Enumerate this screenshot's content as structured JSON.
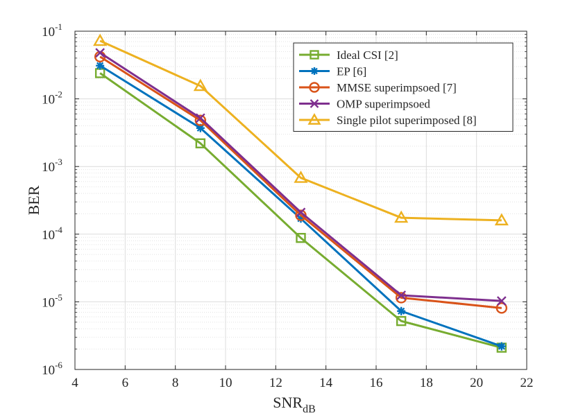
{
  "chart_data": {
    "type": "line",
    "title": "",
    "xlabel": "SNR",
    "xlabel_sub": "dB",
    "ylabel": "BER",
    "yscale": "log",
    "xlim": [
      4,
      22
    ],
    "ylim": [
      1e-06,
      0.1
    ],
    "grid": true,
    "legend_position": "top-right",
    "x_ticks": [
      4,
      6,
      8,
      10,
      12,
      14,
      16,
      18,
      20,
      22
    ],
    "y_ticks": [
      {
        "value": 1e-06,
        "base": "10",
        "exp": "-6"
      },
      {
        "value": 1e-05,
        "base": "10",
        "exp": "-5"
      },
      {
        "value": 0.0001,
        "base": "10",
        "exp": "-4"
      },
      {
        "value": 0.001,
        "base": "10",
        "exp": "-3"
      },
      {
        "value": 0.01,
        "base": "10",
        "exp": "-2"
      },
      {
        "value": 0.1,
        "base": "10",
        "exp": "-1"
      }
    ],
    "x": [
      5,
      9,
      13,
      17,
      21
    ],
    "series": [
      {
        "name": "Ideal CSI [2]",
        "color": "#77AC30",
        "marker": "square",
        "values": [
          0.024,
          0.0022,
          8.8e-05,
          5.2e-06,
          2.1e-06
        ]
      },
      {
        "name": "EP [6]",
        "color": "#0072BD",
        "marker": "asterisk",
        "values": [
          0.031,
          0.0037,
          0.00017,
          7.3e-06,
          2.2e-06
        ]
      },
      {
        "name": "MMSE superimpsoed [7]",
        "color": "#D95319",
        "marker": "circle",
        "values": [
          0.042,
          0.0048,
          0.00019,
          1.15e-05,
          8.1e-06
        ]
      },
      {
        "name": "OMP superimpsoed",
        "color": "#7E2F8E",
        "marker": "x",
        "values": [
          0.048,
          0.0052,
          0.00021,
          1.25e-05,
          1.03e-05
        ]
      },
      {
        "name": "Single pilot superimposed [8]",
        "color": "#EDB120",
        "marker": "triangle",
        "values": [
          0.072,
          0.0155,
          0.00068,
          0.000175,
          0.00016
        ]
      }
    ]
  }
}
